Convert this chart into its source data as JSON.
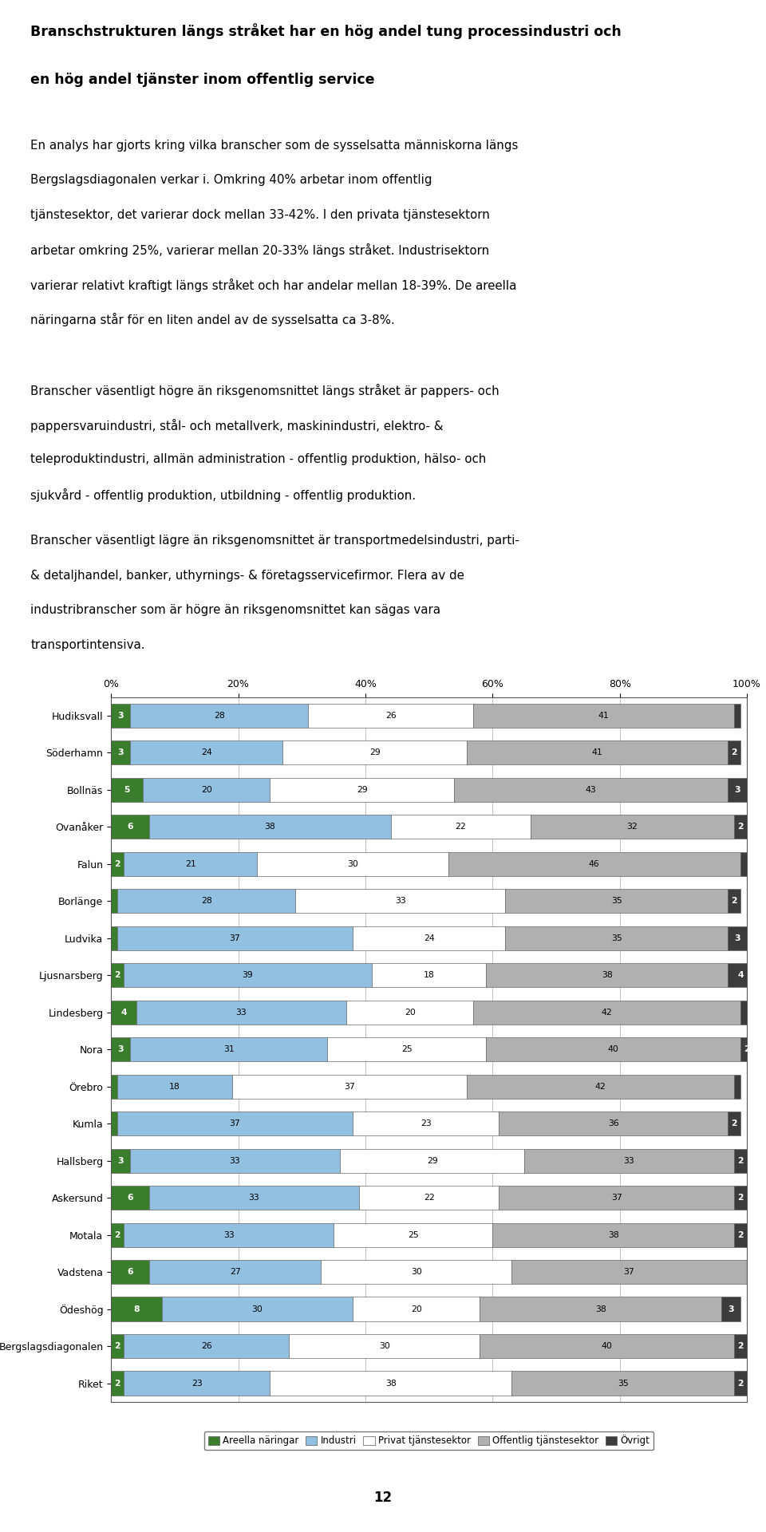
{
  "title_line1": "Branschstrukturen längs stråket har en hög andel tung processindustri och",
  "title_line2": "en hög andel tjänster inom offentlig service",
  "paragraph1_l1": "En analys har gjorts kring vilka branscher som de sysselsatta människorna längs",
  "paragraph1_l2": "Bergslagsdiagonalen verkar i. Omkring 40% arbetar inom offentlig",
  "paragraph1_l3": "tjänstesektor, det varierar dock mellan 33-42%. I den privata tjänstesektorn",
  "paragraph1_l4": "arbetar omkring 25%, varierar mellan 20-33% längs stråket. Industrisektorn",
  "paragraph1_l5": "varierar relativt kraftigt längs stråket och har andelar mellan 18-39%. De areella",
  "paragraph1_l6": "näringarna står för en liten andel av de sysselsatta ca 3-8%.",
  "paragraph2_l1": "Branscher väsentligt högre än riksgenomsnittet längs stråket är pappers- och",
  "paragraph2_l2": "pappersvaruindustri, stål- och metallverk, maskinindustri, elektro- &",
  "paragraph2_l3": "teleproduktindustri, allmän administration - offentlig produktion, hälso- och",
  "paragraph2_l4": "sjukvård - offentlig produktion, utbildning - offentlig produktion.",
  "paragraph3_l1": "Branscher väsentligt lägre än riksgenomsnittet är transportmedelsindustri, parti-",
  "paragraph3_l2": "& detaljhandel, banker, uthyrnings- & företagsservicefirmor. Flera av de",
  "paragraph3_l3": "industribranscher som är högre än riksgenomsnittet kan sägas vara",
  "paragraph3_l4": "transportintensiva.",
  "categories": [
    "Hudiksvall",
    "Söderhamn",
    "Bollnäs",
    "Ovanåker",
    "Falun",
    "Borlänge",
    "Ludvika",
    "Ljusnarsberg",
    "Lindesberg",
    "Nora",
    "Örebro",
    "Kumla",
    "Hallsberg",
    "Askersund",
    "Motala",
    "Vadstena",
    "Ödeshög",
    "Bergslagsdiagonalen",
    "Riket"
  ],
  "areella": [
    3,
    3,
    5,
    6,
    2,
    1,
    1,
    2,
    4,
    3,
    1,
    1,
    3,
    6,
    2,
    6,
    8,
    2,
    2
  ],
  "industri": [
    28,
    24,
    20,
    38,
    21,
    28,
    37,
    39,
    33,
    31,
    18,
    37,
    33,
    33,
    33,
    27,
    30,
    26,
    23
  ],
  "privat": [
    26,
    29,
    29,
    22,
    30,
    33,
    24,
    18,
    20,
    25,
    37,
    23,
    29,
    22,
    25,
    30,
    20,
    30,
    38
  ],
  "offentlig": [
    41,
    41,
    43,
    32,
    46,
    35,
    35,
    38,
    42,
    40,
    42,
    36,
    33,
    37,
    38,
    37,
    38,
    40,
    35
  ],
  "ovrigt": [
    1,
    2,
    3,
    2,
    1,
    2,
    3,
    4,
    1,
    2,
    1,
    2,
    2,
    2,
    2,
    1,
    3,
    2,
    2
  ],
  "colors": {
    "areella": "#3a7d2c",
    "industri": "#92c0e0",
    "privat": "#ffffff",
    "offentlig": "#b0b0b0",
    "ovrigt": "#3c3c3c"
  },
  "legend_labels": [
    "Areella näringar",
    "Industri",
    "Privat tjänstesektor",
    "Offentlig tjänstesektor",
    "Övrigt"
  ],
  "page_number": "12",
  "background_color": "#ffffff"
}
